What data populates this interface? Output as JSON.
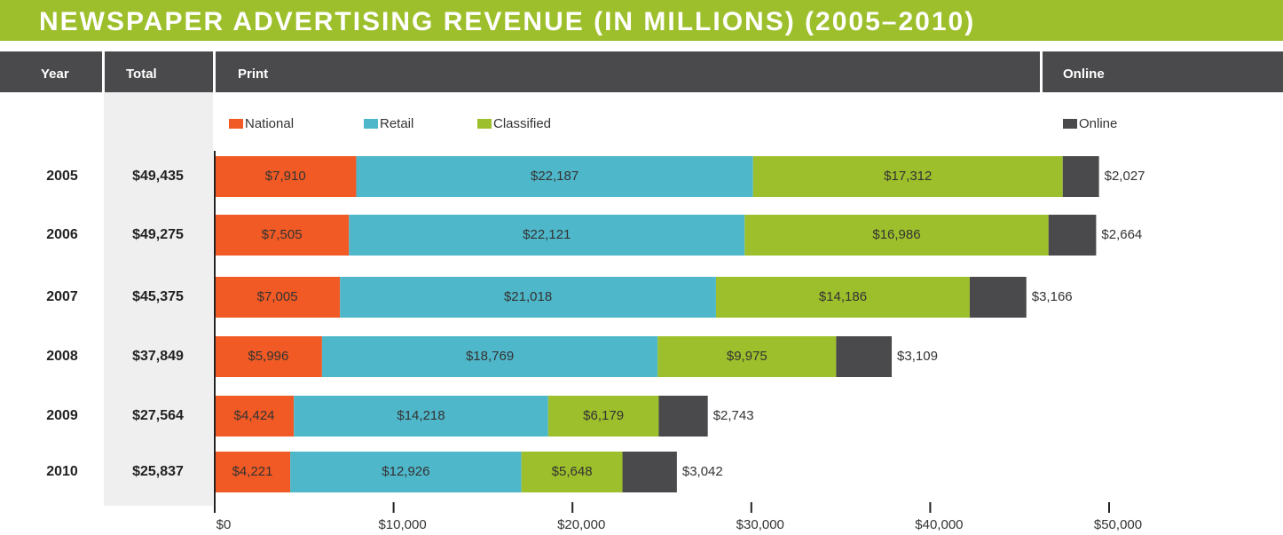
{
  "chart_data": {
    "type": "stacked-bar-h",
    "title": "NEWSPAPER ADVERTISING REVENUE (IN MILLIONS) (2005–2010)",
    "column_headers": [
      "Year",
      "Total",
      "Print",
      "Online"
    ],
    "categories": [
      "2005",
      "2006",
      "2007",
      "2008",
      "2009",
      "2010"
    ],
    "totals": [
      49435,
      49275,
      45375,
      37849,
      27564,
      25837
    ],
    "total_labels": [
      "$49,435",
      "$49,275",
      "$45,375",
      "$37,849",
      "$27,564",
      "$25,837"
    ],
    "series": [
      {
        "name": "National",
        "color": "#f15a24",
        "values": [
          7910,
          7505,
          7005,
          5996,
          4424,
          4221
        ],
        "value_labels": [
          "$7,910",
          "$7,505",
          "$7,005",
          "$5,996",
          "$4,424",
          "$4,221"
        ]
      },
      {
        "name": "Retail",
        "color": "#4fb7ca",
        "values": [
          22187,
          22121,
          21018,
          18769,
          14218,
          12926
        ],
        "value_labels": [
          "$22,187",
          "$22,121",
          "$21,018",
          "$18,769",
          "$14,218",
          "$12,926"
        ]
      },
      {
        "name": "Classified",
        "color": "#9dbf2b",
        "values": [
          17312,
          16986,
          14186,
          9975,
          6179,
          5648
        ],
        "value_labels": [
          "$17,312",
          "$16,986",
          "$14,186",
          "$9,975",
          "$6,179",
          "$5,648"
        ]
      },
      {
        "name": "Online",
        "color": "#4a4a4c",
        "values": [
          2027,
          2664,
          3166,
          3109,
          2743,
          3042
        ],
        "value_labels": [
          "$2,027",
          "$2,664",
          "$3,166",
          "$3,109",
          "$2,743",
          "$3,042"
        ]
      }
    ],
    "xlim": [
      0,
      50000
    ],
    "xticks": [
      {
        "value": 0,
        "label": "$0"
      },
      {
        "value": 10000,
        "label": "$10,000"
      },
      {
        "value": 20000,
        "label": "$20,000"
      },
      {
        "value": 30000,
        "label": "$30,000"
      },
      {
        "value": 40000,
        "label": "$40,000"
      },
      {
        "value": 50000,
        "label": "$50,000"
      }
    ]
  }
}
